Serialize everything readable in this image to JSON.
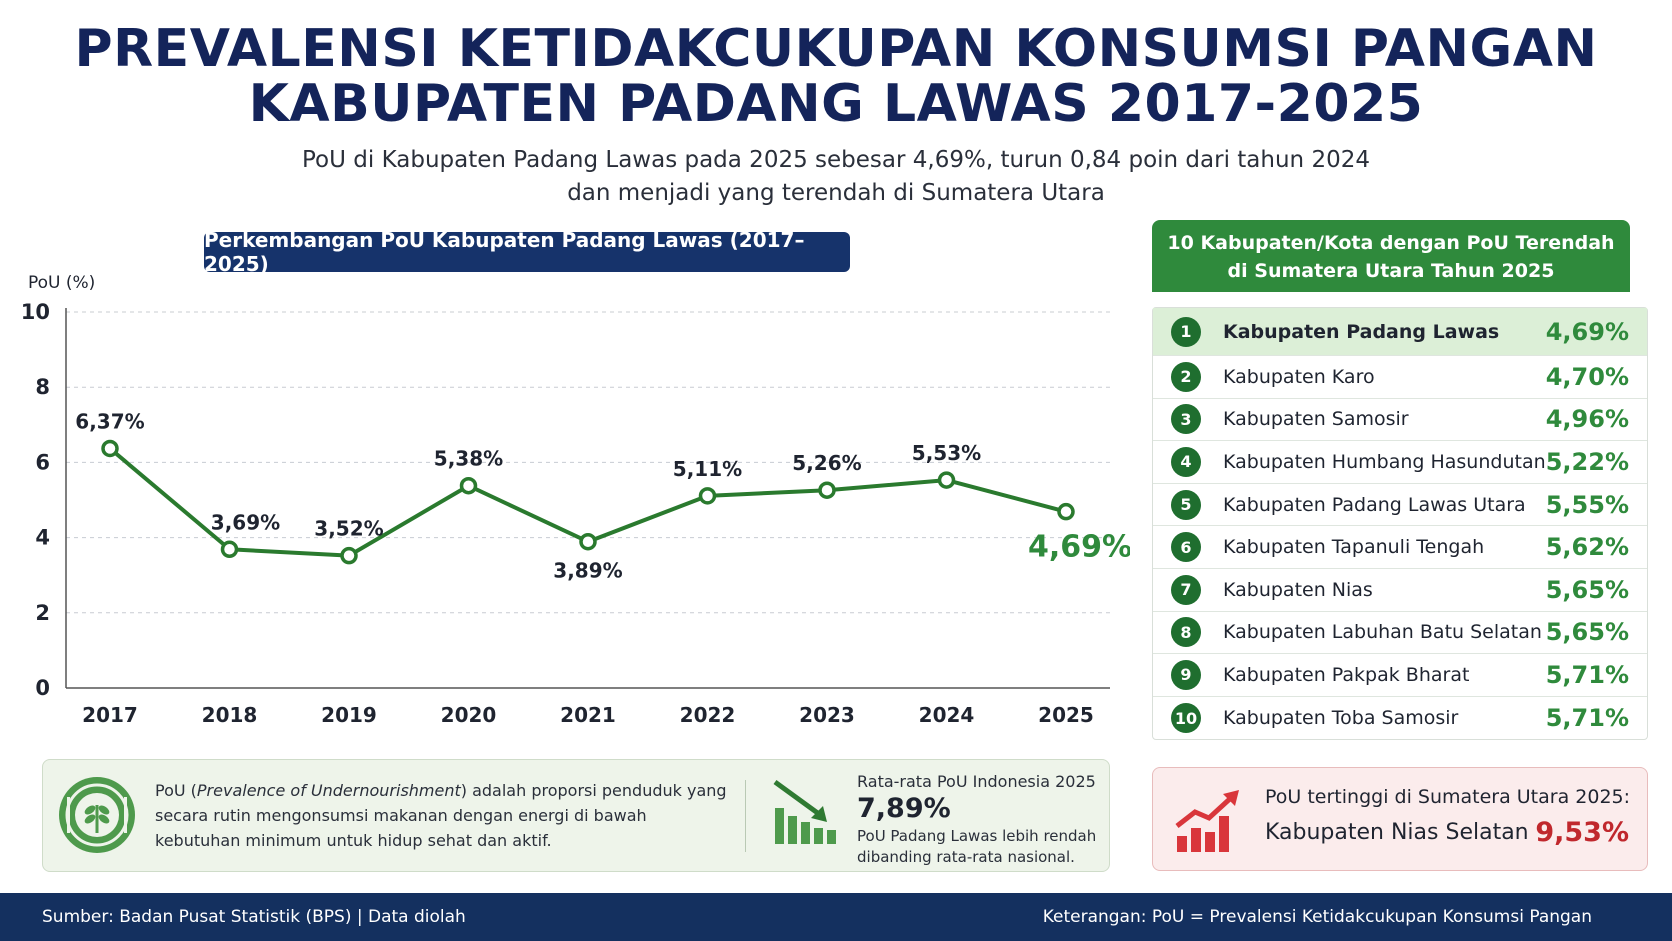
{
  "header": {
    "title_line1": "PREVALENSI KETIDAKCUKUPAN KONSUMSI PANGAN",
    "title_line2": "KABUPATEN PADANG LAWAS 2017-2025",
    "subtitle_line1": "PoU di Kabupaten Padang Lawas pada 2025 sebesar 4,69%, turun 0,84 poin dari tahun 2024",
    "subtitle_line2": "dan menjadi yang terendah di Sumatera Utara"
  },
  "chart_title": "Perkembangan PoU Kabupaten Padang Lawas (2017–2025)",
  "chart_data": {
    "type": "line",
    "title": "Perkembangan PoU Kabupaten Padang Lawas (2017–2025)",
    "ylabel": "PoU (%)",
    "xlabel": "",
    "categories": [
      "2017",
      "2018",
      "2019",
      "2020",
      "2021",
      "2022",
      "2023",
      "2024",
      "2025"
    ],
    "values": [
      6.37,
      3.69,
      3.52,
      5.38,
      3.89,
      5.11,
      5.26,
      5.53,
      4.69
    ],
    "data_labels": [
      "6,37%",
      "3,69%",
      "3,52%",
      "5,38%",
      "3,89%",
      "5,11%",
      "5,26%",
      "5,53%",
      "4,69%"
    ],
    "ylim": [
      0,
      10
    ],
    "yticks": [
      "0",
      "2",
      "4",
      "6",
      "8",
      "10"
    ],
    "grid": true,
    "line_color": "#2a7a2e",
    "highlight_color": "#2f8a3c"
  },
  "ranking": {
    "title_line1": "10 Kabupaten/Kota dengan PoU Terendah",
    "title_line2": "di Sumatera Utara Tahun 2025",
    "items": [
      {
        "rank": "1",
        "name": "Kabupaten Padang Lawas",
        "value": "4,69%"
      },
      {
        "rank": "2",
        "name": "Kabupaten Karo",
        "value": "4,70%"
      },
      {
        "rank": "3",
        "name": "Kabupaten Samosir",
        "value": "4,96%"
      },
      {
        "rank": "4",
        "name": "Kabupaten Humbang Hasundutan",
        "value": "5,22%"
      },
      {
        "rank": "5",
        "name": "Kabupaten Padang Lawas Utara",
        "value": "5,55%"
      },
      {
        "rank": "6",
        "name": "Kabupaten Tapanuli Tengah",
        "value": "5,62%"
      },
      {
        "rank": "7",
        "name": "Kabupaten Nias",
        "value": "5,65%"
      },
      {
        "rank": "8",
        "name": "Kabupaten Labuhan Batu Selatan",
        "value": "5,65%"
      },
      {
        "rank": "9",
        "name": "Kabupaten Pakpak Bharat",
        "value": "5,71%"
      },
      {
        "rank": "10",
        "name": "Kabupaten Toba Samosir",
        "value": "5,71%"
      }
    ]
  },
  "info": {
    "def_prefix": "PoU (",
    "def_term": "Prevalence of Undernourishment",
    "def_suffix": ") adalah proporsi penduduk yang secara rutin mengonsumsi makanan dengan energi di bawah kebutuhan minimum untuk hidup sehat dan aktif.",
    "avg_label": "Rata-rata PoU Indonesia 2025",
    "avg_value": "7,89%",
    "avg_note": "PoU Padang Lawas lebih rendah dibanding rata-rata nasional.",
    "icon_left": "food-plate-icon",
    "icon_mid": "bar-chart-down-icon"
  },
  "highest": {
    "label": "PoU tertinggi di Sumatera Utara 2025:",
    "name": "Kabupaten Nias Selatan",
    "value": "9,53%",
    "icon": "bar-chart-up-icon"
  },
  "footer": {
    "source": "Sumber: Badan Pusat Statistik (BPS) | Data diolah",
    "note": "Keterangan: PoU = Prevalensi Ketidakcukupan Konsumsi Pangan"
  },
  "colors": {
    "navy": "#14245a",
    "green": "#2f8a3c",
    "dark_green": "#1f6e2f",
    "red": "#c0282d"
  }
}
